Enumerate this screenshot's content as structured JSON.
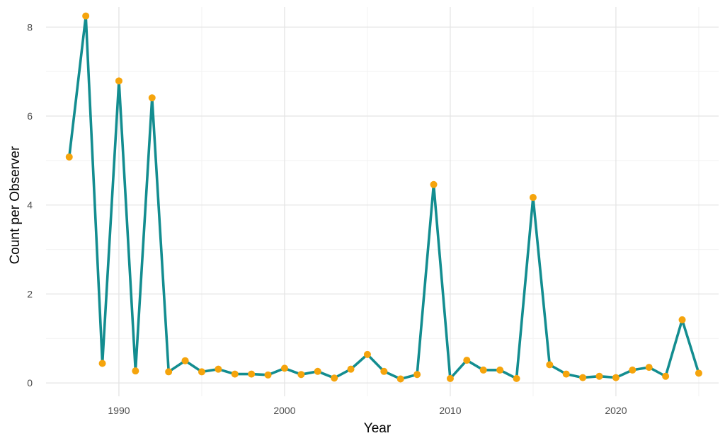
{
  "chart_data": {
    "type": "line",
    "title": "",
    "xlabel": "Year",
    "ylabel": "Count per Observer",
    "xlim": [
      1985.6,
      2026.2
    ],
    "ylim": [
      -0.3,
      8.45
    ],
    "x_ticks": [
      1990,
      2000,
      2010,
      2020
    ],
    "y_ticks": [
      0,
      2,
      4,
      6,
      8
    ],
    "grid": true,
    "legend": "none",
    "line_color": "#138d90",
    "point_color": "#f5a40c",
    "series": [
      {
        "x": [
          1987,
          1988,
          1989,
          1990,
          1991,
          1992,
          1993,
          1994,
          1995,
          1996,
          1997,
          1998,
          1999,
          2000,
          2001,
          2002,
          2003,
          2004,
          2005,
          2006,
          2007,
          2008,
          2009,
          2010,
          2011,
          2012,
          2013,
          2014,
          2015,
          2016,
          2017,
          2018,
          2019,
          2020,
          2021,
          2022,
          2023,
          2024,
          2025
        ],
        "y": [
          5.08,
          8.25,
          0.44,
          6.79,
          0.27,
          6.41,
          0.25,
          0.5,
          0.25,
          0.31,
          0.2,
          0.2,
          0.18,
          0.33,
          0.19,
          0.26,
          0.11,
          0.31,
          0.64,
          0.26,
          0.09,
          0.19,
          4.46,
          0.1,
          0.51,
          0.29,
          0.29,
          0.1,
          4.17,
          0.41,
          0.2,
          0.12,
          0.15,
          0.12,
          0.29,
          0.35,
          0.15,
          1.42,
          0.22
        ]
      }
    ]
  }
}
